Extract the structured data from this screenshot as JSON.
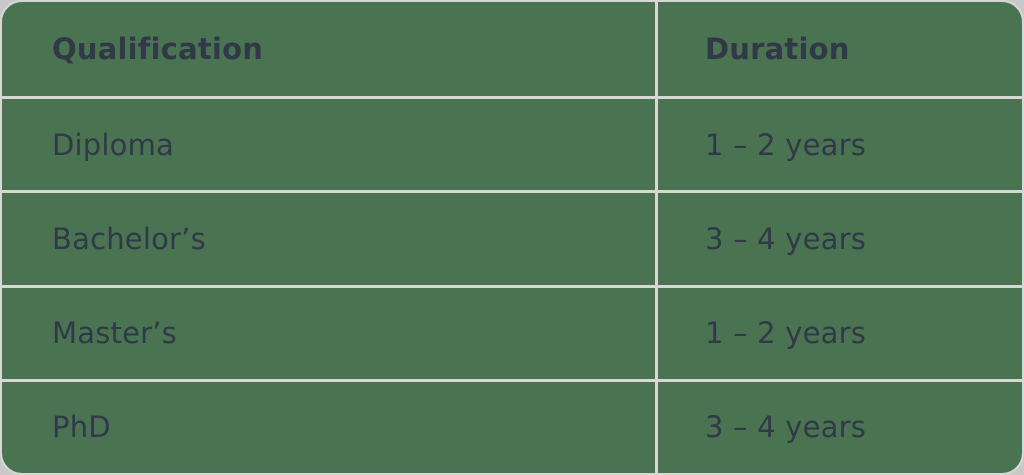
{
  "colors": {
    "page_bg": "#c9c9c9",
    "table_bg": "#4a7351",
    "grid_line": "#d6d9d3",
    "text": "#313948"
  },
  "table": {
    "columns": [
      "Qualification",
      "Duration"
    ],
    "rows": [
      {
        "qualification": "Diploma",
        "duration": "1 – 2 years"
      },
      {
        "qualification": "Bachelor’s",
        "duration": "3 – 4 years"
      },
      {
        "qualification": "Master’s",
        "duration": "1 – 2 years"
      },
      {
        "qualification": "PhD",
        "duration": "3 – 4 years"
      }
    ]
  }
}
